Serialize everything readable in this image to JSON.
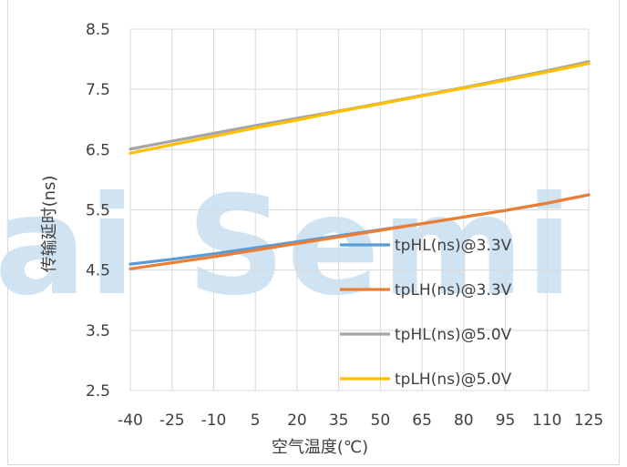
{
  "watermark": "ai Semi",
  "chart_data": {
    "type": "line",
    "xlabel": "空气温度(℃)",
    "ylabel": "传输延时(ns)",
    "categories": [
      "-40",
      "-25",
      "-10",
      "5",
      "20",
      "35",
      "50",
      "65",
      "80",
      "95",
      "110",
      "125"
    ],
    "yticks": [
      "8.5",
      "7.5",
      "6.5",
      "5.5",
      "4.5",
      "3.5",
      "2.5"
    ],
    "ylim": [
      2.5,
      8.5
    ],
    "grid": true,
    "legend_position": "right",
    "series": [
      {
        "name": "tpHL(ns)@3.3V",
        "color": "#5b9bd5",
        "values": [
          4.6,
          4.68,
          4.77,
          4.87,
          4.97,
          5.07,
          5.17,
          5.27,
          5.38,
          5.49,
          5.61,
          5.75
        ]
      },
      {
        "name": "tpLH(ns)@3.3V",
        "color": "#ed7d31",
        "values": [
          4.52,
          4.62,
          4.72,
          4.83,
          4.94,
          5.05,
          5.16,
          5.27,
          5.38,
          5.49,
          5.61,
          5.75
        ]
      },
      {
        "name": "tpHL(ns)@5.0V",
        "color": "#a5a5a5",
        "values": [
          6.51,
          6.64,
          6.77,
          6.9,
          7.02,
          7.14,
          7.27,
          7.4,
          7.53,
          7.67,
          7.81,
          7.96
        ]
      },
      {
        "name": "tpLH(ns)@5.0V",
        "color": "#ffc000",
        "values": [
          6.44,
          6.58,
          6.72,
          6.86,
          6.99,
          7.13,
          7.26,
          7.39,
          7.52,
          7.65,
          7.79,
          7.93
        ]
      }
    ]
  }
}
